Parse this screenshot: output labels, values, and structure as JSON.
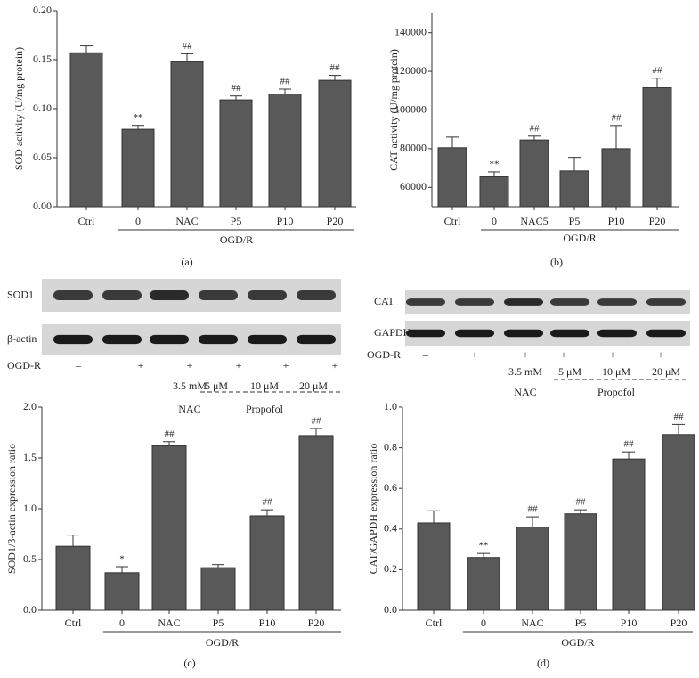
{
  "chart_data": [
    {
      "type": "bar",
      "panel": "(a)",
      "ylabel": "SOD activity (U/mg protein)",
      "categories": [
        "Ctrl",
        "0",
        "NAC",
        "P5",
        "P10",
        "P20"
      ],
      "values": [
        0.157,
        0.079,
        0.148,
        0.109,
        0.115,
        0.129
      ],
      "errors": [
        0.007,
        0.004,
        0.008,
        0.004,
        0.005,
        0.005
      ],
      "significance": [
        null,
        "**",
        "##",
        "##",
        "##",
        "##"
      ],
      "group_label": "OGD/R",
      "color": "#595959",
      "ylim": [
        0,
        0.2
      ],
      "yticks": [
        {
          "value": 0,
          "label": "0.00"
        },
        {
          "value": 0.05,
          "label": "0.05"
        },
        {
          "value": 0.1,
          "label": "0.10"
        },
        {
          "value": 0.15,
          "label": "0.15"
        },
        {
          "value": 0.2,
          "label": "0.20"
        }
      ]
    },
    {
      "type": "bar",
      "panel": "(b)",
      "ylabel": "CAT activity (U/mg protein)",
      "categories": [
        "Ctrl",
        "0",
        "NAC5",
        "P5",
        "P10",
        "P20"
      ],
      "values": [
        80500,
        65500,
        84500,
        68500,
        80000,
        111500
      ],
      "errors": [
        5500,
        2500,
        2000,
        7000,
        12000,
        5000
      ],
      "significance": [
        null,
        "**",
        "##",
        null,
        "##",
        "##"
      ],
      "group_label": "OGD/R",
      "color": "#595959",
      "ylim": [
        50000,
        150000
      ],
      "yticks": [
        60000,
        80000,
        100000,
        120000,
        140000
      ]
    },
    {
      "type": "bar",
      "panel": "(c)",
      "ylabel": "SOD1/β-actin expression ratio",
      "categories": [
        "Ctrl",
        "0",
        "NAC",
        "P5",
        "P10",
        "P20"
      ],
      "values": [
        0.63,
        0.37,
        1.62,
        0.42,
        0.93,
        1.72
      ],
      "errors": [
        0.11,
        0.06,
        0.04,
        0.03,
        0.06,
        0.07
      ],
      "significance": [
        null,
        "*",
        "##",
        null,
        "##",
        "##"
      ],
      "group_label": "OGD/R",
      "color": "#595959",
      "ylim": [
        0,
        2
      ],
      "yticks": [
        {
          "value": 0,
          "label": "0.0"
        },
        {
          "value": 0.5,
          "label": "0.5"
        },
        {
          "value": 1,
          "label": "1.0"
        },
        {
          "value": 1.5,
          "label": "1.5"
        },
        {
          "value": 2,
          "label": "2.0"
        }
      ]
    },
    {
      "type": "bar",
      "panel": "(d)",
      "ylabel": "CAT/GAPDH expression ratio",
      "categories": [
        "Ctrl",
        "0",
        "NAC",
        "P5",
        "P10",
        "P20"
      ],
      "values": [
        0.43,
        0.26,
        0.41,
        0.475,
        0.745,
        0.865
      ],
      "errors": [
        0.06,
        0.02,
        0.05,
        0.02,
        0.035,
        0.05
      ],
      "significance": [
        null,
        "**",
        "##",
        "##",
        "##",
        "##"
      ],
      "group_label": "OGD/R",
      "color": "#595959",
      "ylim": [
        0,
        1
      ],
      "yticks": [
        {
          "value": 0,
          "label": "0.0"
        },
        {
          "value": 0.2,
          "label": "0.2"
        },
        {
          "value": 0.4,
          "label": "0.4"
        },
        {
          "value": 0.6,
          "label": "0.6"
        },
        {
          "value": 0.8,
          "label": "0.8"
        },
        {
          "value": 1,
          "label": "1.0"
        }
      ]
    }
  ],
  "blots": [
    {
      "rows": [
        "SOD1",
        "β-actin"
      ],
      "treatment_label": "OGD-R",
      "signs": [
        "–",
        "+",
        "+",
        "+",
        "+",
        "+"
      ],
      "doses": [
        "3.5 mM",
        "5 μM",
        "10 μM",
        "20 μM"
      ],
      "groups": [
        "NAC",
        "Propofol"
      ]
    },
    {
      "rows": [
        "CAT",
        "GAPDH"
      ],
      "treatment_label": "OGD-R",
      "signs": [
        "–",
        "+",
        "+",
        "+",
        "+",
        "+"
      ],
      "doses": [
        "3.5 mM",
        "5 μM",
        "10 μM",
        "20 μM"
      ],
      "groups": [
        "NAC",
        "Propofol"
      ]
    }
  ]
}
